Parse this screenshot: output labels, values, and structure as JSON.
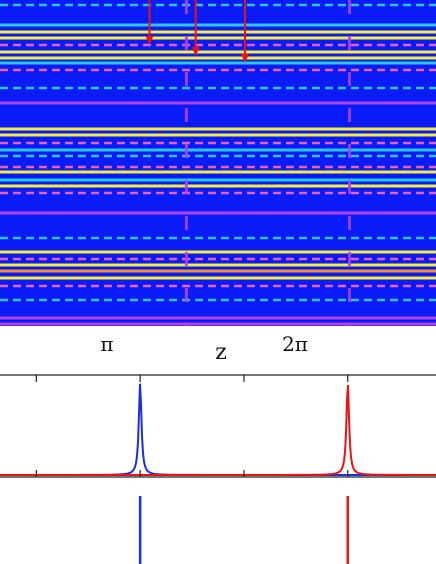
{
  "colors": {
    "background": "#0a1bf5",
    "yellow": "#f4ee40",
    "cyan": "#28c8f2",
    "magenta": "#b040ec",
    "orange": "#f4902a",
    "pink": "#e860c0",
    "red": "#ee1111",
    "blue": "#1a2ee8",
    "axis": "#222222"
  },
  "chart_data": [
    {
      "type": "heatmap",
      "xlabel": "z",
      "x_ticks": [
        {
          "value": 3.14159,
          "label": "π"
        },
        {
          "value": 6.28318,
          "label": "2π"
        }
      ],
      "x_range": [
        -0.45,
        7.95
      ],
      "bands": [
        {
          "y": 5,
          "color": "#28c8f2",
          "kind": "dash"
        },
        {
          "y": 25,
          "color": "#28c8f2",
          "kind": "solid"
        },
        {
          "y": 32,
          "color": "#f4ee40",
          "kind": "solid"
        },
        {
          "y": 38,
          "color": "#f4ee40",
          "kind": "solid"
        },
        {
          "y": 45,
          "color": "#e860c0",
          "kind": "dash"
        },
        {
          "y": 52,
          "color": "#f4ee40",
          "kind": "solid"
        },
        {
          "y": 58,
          "color": "#f4ee40",
          "kind": "solid"
        },
        {
          "y": 63,
          "color": "#28c8f2",
          "kind": "solid"
        },
        {
          "y": 70,
          "color": "#e860c0",
          "kind": "dash"
        },
        {
          "y": 88,
          "color": "#28c8f2",
          "kind": "dash"
        },
        {
          "y": 103,
          "color": "#b040ec",
          "kind": "solid"
        },
        {
          "y": 129,
          "color": "#f4ee40",
          "kind": "solid"
        },
        {
          "y": 135,
          "color": "#f4ee40",
          "kind": "solid"
        },
        {
          "y": 143,
          "color": "#e860c0",
          "kind": "dash"
        },
        {
          "y": 150,
          "color": "#28c8f2",
          "kind": "solid"
        },
        {
          "y": 156,
          "color": "#28c8f2",
          "kind": "dash"
        },
        {
          "y": 167,
          "color": "#e860c0",
          "kind": "dash"
        },
        {
          "y": 172,
          "color": "#f4ee40",
          "kind": "solid"
        },
        {
          "y": 180,
          "color": "#28c8f2",
          "kind": "solid"
        },
        {
          "y": 186,
          "color": "#f4ee40",
          "kind": "solid"
        },
        {
          "y": 193,
          "color": "#e860c0",
          "kind": "dash"
        },
        {
          "y": 213,
          "color": "#b040ec",
          "kind": "solid"
        },
        {
          "y": 238,
          "color": "#28c8f2",
          "kind": "dash"
        },
        {
          "y": 252,
          "color": "#f4ee40",
          "kind": "solid"
        },
        {
          "y": 259,
          "color": "#e860c0",
          "kind": "dash"
        },
        {
          "y": 265,
          "color": "#f4ee40",
          "kind": "solid"
        },
        {
          "y": 271,
          "color": "#f4902a",
          "kind": "solid"
        },
        {
          "y": 278,
          "color": "#f4ee40",
          "kind": "solid"
        },
        {
          "y": 286,
          "color": "#e860c0",
          "kind": "dash"
        },
        {
          "y": 300,
          "color": "#28c8f2",
          "kind": "dash"
        },
        {
          "y": 318,
          "color": "#b040ec",
          "kind": "solid"
        },
        {
          "y": 324,
          "color": "#b040ec",
          "kind": "solid"
        }
      ],
      "markers": [
        {
          "x": 2.43,
          "end_y": 42
        },
        {
          "x": 3.32,
          "end_y": 53
        },
        {
          "x": 4.27,
          "end_y": 60
        }
      ]
    },
    {
      "type": "line",
      "x_range": [
        -0.45,
        7.95
      ],
      "x_ticks": [
        0.25,
        2.25,
        4.25,
        6.25
      ],
      "series": [
        {
          "color": "#1a2ee8",
          "peak_x": 2.25,
          "peak_height": 0.92
        },
        {
          "color": "#ee1111",
          "peak_x": 6.25,
          "peak_height": 0.92
        }
      ]
    },
    {
      "type": "line",
      "x_range": [
        -0.45,
        7.95
      ],
      "x_ticks": [
        0.25,
        2.25,
        4.25,
        6.25
      ],
      "series": [
        {
          "color": "#1a2ee8",
          "peak_x": 2.25,
          "peak_height": 0.85
        },
        {
          "color": "#ee1111",
          "peak_x": 6.25,
          "peak_height": 0.85
        }
      ]
    }
  ]
}
